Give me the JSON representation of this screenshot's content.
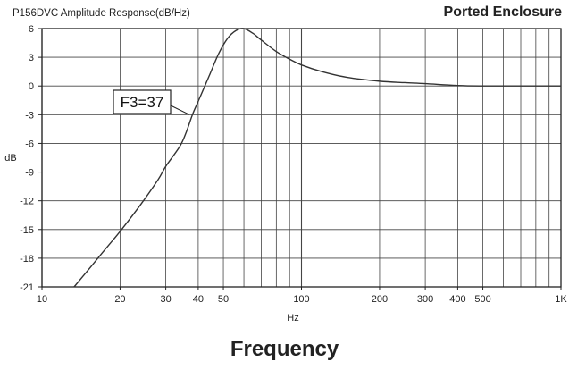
{
  "chart_data": {
    "type": "line",
    "title": "P156DVC  Amplitude Response(dB/Hz)",
    "subtitle": "Ported Enclosure",
    "footer": "Frequency",
    "xlabel": "Hz",
    "ylabel": "dB",
    "x_scale": "log",
    "xlim": [
      10,
      1000
    ],
    "ylim": [
      -21,
      6
    ],
    "grid": true,
    "x_ticks": [
      {
        "value": 10,
        "label": "10"
      },
      {
        "value": 20,
        "label": "20"
      },
      {
        "value": 30,
        "label": "30"
      },
      {
        "value": 40,
        "label": "40"
      },
      {
        "value": 50,
        "label": "50"
      },
      {
        "value": 100,
        "label": "100"
      },
      {
        "value": 200,
        "label": "200"
      },
      {
        "value": 300,
        "label": "300"
      },
      {
        "value": 400,
        "label": "400"
      },
      {
        "value": 500,
        "label": "500"
      },
      {
        "value": 1000,
        "label": "1K"
      }
    ],
    "y_ticks": [
      {
        "value": 6,
        "label": "6"
      },
      {
        "value": 3,
        "label": "3"
      },
      {
        "value": 0,
        "label": "0"
      },
      {
        "value": -3,
        "label": "-3"
      },
      {
        "value": -6,
        "label": "-6"
      },
      {
        "value": -9,
        "label": "-9"
      },
      {
        "value": -12,
        "label": "-12"
      },
      {
        "value": -15,
        "label": "-15"
      },
      {
        "value": -18,
        "label": "-18"
      },
      {
        "value": -21,
        "label": "-21"
      }
    ],
    "series": [
      {
        "color": "#333333",
        "x": [
          13.3,
          15,
          17,
          20,
          24,
          28,
          30,
          34,
          36,
          38,
          40,
          44,
          48,
          52,
          56,
          60,
          65,
          70,
          80,
          90,
          100,
          120,
          150,
          200,
          250,
          300,
          400,
          500,
          700,
          1000
        ],
        "y": [
          -21,
          -19.3,
          -17.5,
          -15.2,
          -12.4,
          -9.8,
          -8.4,
          -6.3,
          -4.8,
          -3.0,
          -1.6,
          1.0,
          3.4,
          5.0,
          5.8,
          6.0,
          5.5,
          4.8,
          3.6,
          2.8,
          2.2,
          1.5,
          0.9,
          0.5,
          0.35,
          0.25,
          0.05,
          0.0,
          0.0,
          0.0
        ]
      }
    ],
    "annotations": [
      {
        "text": "F3=37",
        "x": 37,
        "y": -3
      }
    ]
  }
}
